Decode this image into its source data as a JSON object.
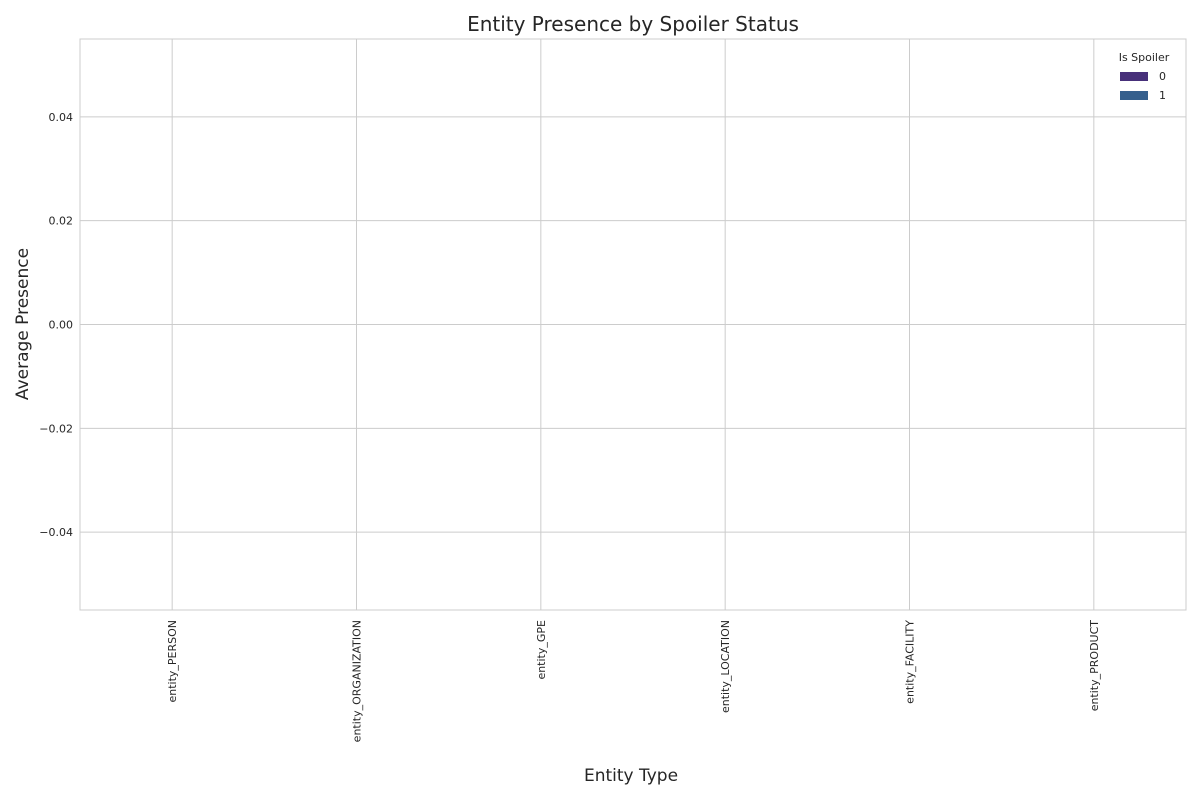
{
  "chart_data": {
    "type": "bar",
    "title": "Entity Presence by Spoiler Status",
    "xlabel": "Entity Type",
    "ylabel": "Average Presence",
    "categories": [
      "entity_PERSON",
      "entity_ORGANIZATION",
      "entity_GPE",
      "entity_LOCATION",
      "entity_FACILITY",
      "entity_PRODUCT"
    ],
    "series": [
      {
        "name": "0",
        "values": [
          0,
          0,
          0,
          0,
          0,
          0
        ],
        "color": "#47307a"
      },
      {
        "name": "1",
        "values": [
          0,
          0,
          0,
          0,
          0,
          0
        ],
        "color": "#355f8d"
      }
    ],
    "ylim": [
      -0.055,
      0.055
    ],
    "yticks": [
      -0.04,
      -0.02,
      0.0,
      0.02,
      0.04
    ],
    "ytick_labels": [
      "−0.04",
      "−0.02",
      "0.00",
      "0.02",
      "0.04"
    ],
    "grid": true,
    "legend": {
      "title": "Is Spoiler",
      "position": "top-right"
    }
  }
}
